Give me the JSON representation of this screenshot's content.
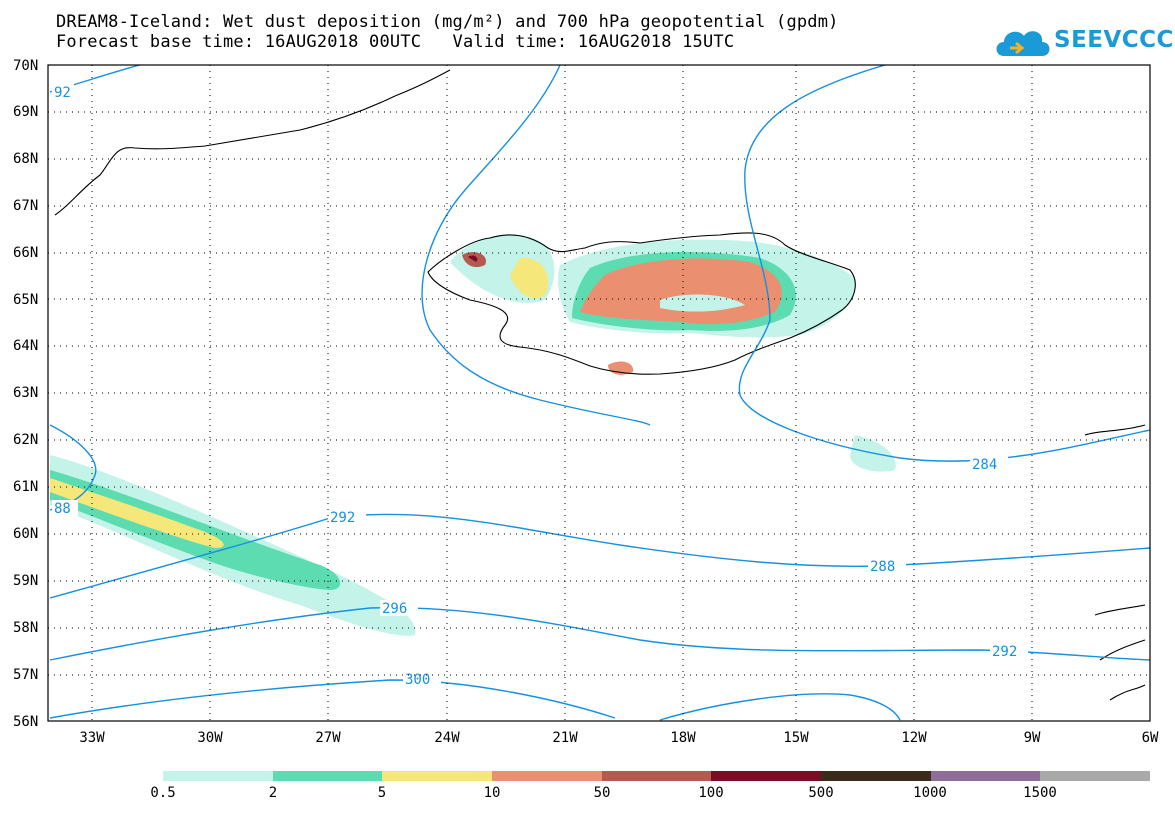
{
  "header": {
    "line1": "DREAM8-Iceland: Wet dust deposition (mg/m²) and 700 hPa geopotential (gpdm)",
    "line2": "Forecast base time: 16AUG2018 00UTC   Valid time: 16AUG2018 15UTC"
  },
  "logo": {
    "text": "SEEVCCC",
    "icon": "cloud-icon",
    "color": "#1a9ad6"
  },
  "map": {
    "extent": {
      "lon_min": -34,
      "lon_max": -6,
      "lat_min": 56,
      "lat_max": 70
    },
    "lat_labels": [
      "56N",
      "57N",
      "58N",
      "59N",
      "60N",
      "61N",
      "62N",
      "63N",
      "64N",
      "65N",
      "66N",
      "67N",
      "68N",
      "69N",
      "70N"
    ],
    "lon_labels": [
      "33W",
      "30W",
      "27W",
      "24W",
      "21W",
      "18W",
      "15W",
      "12W",
      "9W",
      "6W"
    ],
    "contour_labels": [
      "92",
      "88",
      "292",
      "296",
      "300",
      "284",
      "288",
      "292"
    ],
    "contour_color": "#1591e0"
  },
  "legend": {
    "colors": [
      "#c4f3ea",
      "#5cdcb0",
      "#f6e77a",
      "#ea9070",
      "#b55a4f",
      "#7a0d23",
      "#3b2b1b",
      "#8e6d99",
      "#a9a9a9"
    ],
    "labels": [
      "0.5",
      "2",
      "5",
      "10",
      "50",
      "100",
      "500",
      "1000",
      "1500"
    ]
  }
}
